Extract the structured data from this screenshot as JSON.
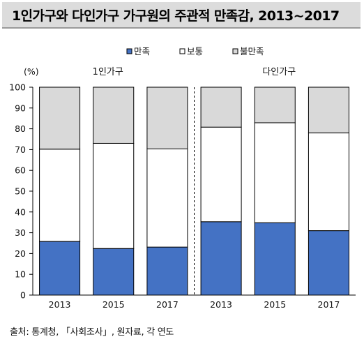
{
  "title": "1인가구와 다인가구 가구원의 주관적 만족감, 2013~2017",
  "source": "출처: 통계청, 「사회조사」, 원자료, 각 연도",
  "chart_data": {
    "type": "bar",
    "stacked": true,
    "y_unit_label": "(%)",
    "ylim": [
      0,
      100
    ],
    "yticks": [
      0,
      10,
      20,
      30,
      40,
      50,
      60,
      70,
      80,
      90,
      100
    ],
    "groups": [
      "1인가구",
      "다인가구"
    ],
    "categories": [
      "2013",
      "2015",
      "2017",
      "2013",
      "2015",
      "2017"
    ],
    "category_group": [
      0,
      0,
      0,
      1,
      1,
      1
    ],
    "series": [
      {
        "name": "만족",
        "color": "#4472c4",
        "values": [
          25.8,
          22.4,
          23.1,
          35.3,
          34.8,
          31.0
        ]
      },
      {
        "name": "보통",
        "color": "#ffffff",
        "values": [
          44.4,
          50.6,
          47.2,
          45.5,
          48.1,
          47.0
        ]
      },
      {
        "name": "불만족",
        "color": "#d9d9d9",
        "values": [
          29.8,
          27.0,
          29.7,
          19.2,
          17.1,
          22.0
        ]
      }
    ],
    "legend_position": "top-center",
    "grid": false,
    "group_divider": "dashed"
  }
}
